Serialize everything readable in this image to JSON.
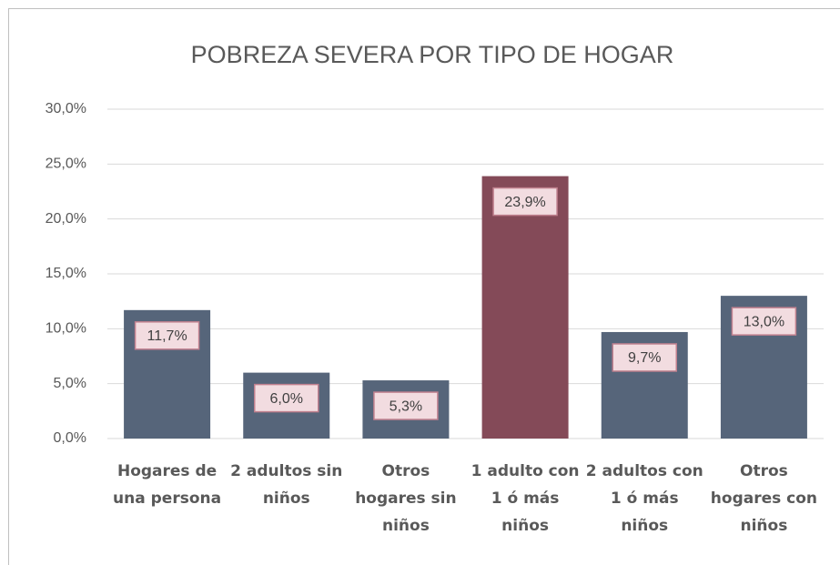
{
  "chart_data": {
    "type": "bar",
    "title": "POBREZA SEVERA POR TIPO DE HOGAR",
    "categories": [
      "Hogares de una persona",
      "2 adultos sin niños",
      "Otros hogares sin niños",
      "1 adulto con 1 ó más niños",
      "2 adultos con 1 ó más niños",
      "Otros hogares con niños"
    ],
    "values": [
      11.7,
      6.0,
      5.3,
      23.9,
      9.7,
      13.0
    ],
    "value_labels": [
      "11,7%",
      "6,0%",
      "5,3%",
      "23,9%",
      "9,7%",
      "13,0%"
    ],
    "colors": [
      "#56657a",
      "#56657a",
      "#56657a",
      "#844a58",
      "#56657a",
      "#56657a"
    ],
    "ylim": [
      0,
      30
    ],
    "yticks": [
      {
        "value": 0,
        "label": "0,0%"
      },
      {
        "value": 5,
        "label": "5,0%"
      },
      {
        "value": 10,
        "label": "10,0%"
      },
      {
        "value": 15,
        "label": "15,0%"
      },
      {
        "value": 20,
        "label": "20,0%"
      },
      {
        "value": 25,
        "label": "25,0%"
      },
      {
        "value": 30,
        "label": "30,0%"
      }
    ],
    "grid": true
  }
}
